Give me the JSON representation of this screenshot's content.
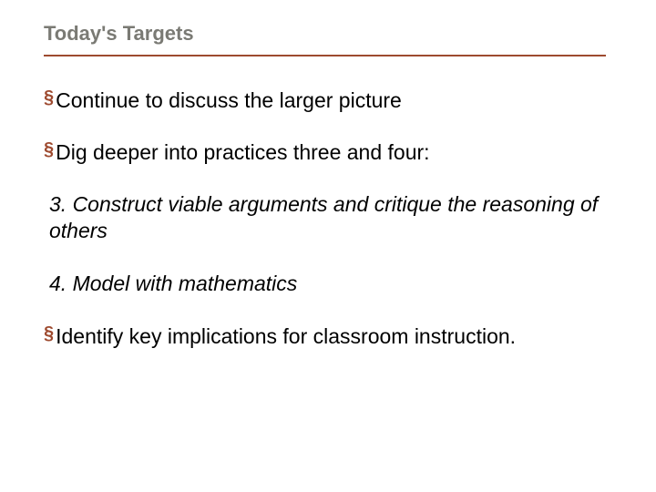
{
  "title": "Today's Targets",
  "rule_color": "#9e4a2f",
  "bullet_color": "#9e4a2f",
  "bullets": {
    "b1": "Continue to discuss the larger picture",
    "b2": "Dig deeper into practices three and four:",
    "b3": "Identify key implications for classroom instruction."
  },
  "practices": {
    "p3": "3. Construct viable arguments and critique the reasoning of others",
    "p4": "4. Model with mathematics"
  }
}
